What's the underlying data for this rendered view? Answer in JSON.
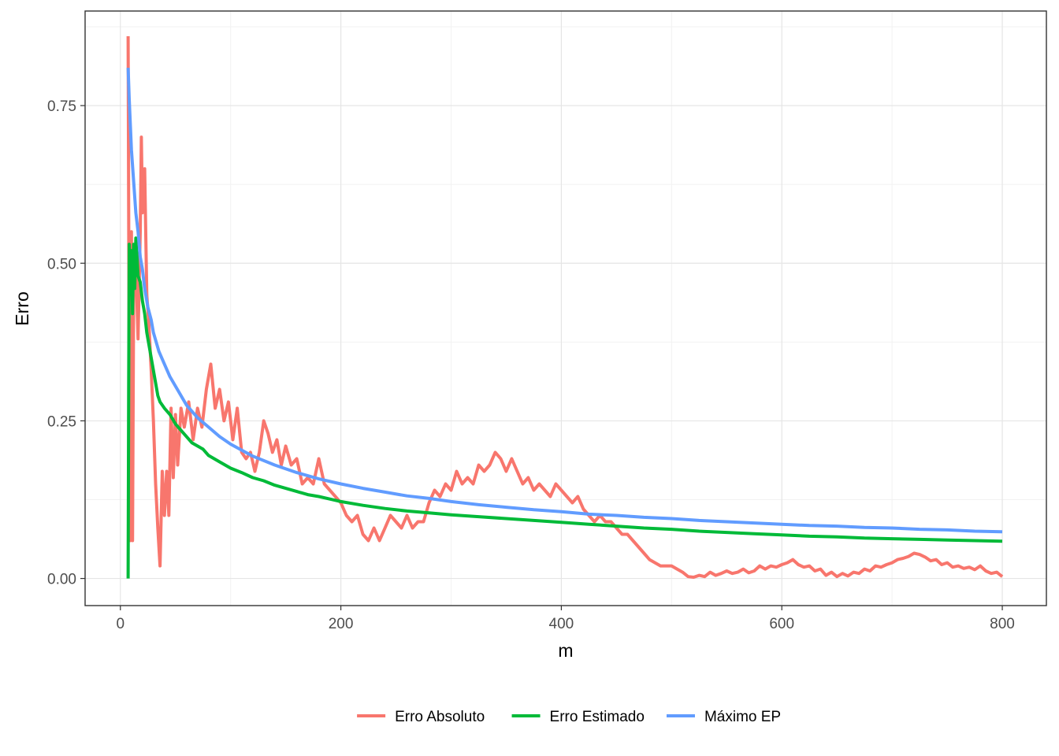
{
  "chart_data": {
    "type": "line",
    "title": "",
    "xlabel": "m",
    "ylabel": "Erro",
    "xlim": [
      -32,
      840
    ],
    "ylim": [
      -0.043,
      0.9
    ],
    "x_ticks": [
      0,
      200,
      400,
      600,
      800
    ],
    "x_tick_labels": [
      "0",
      "200",
      "400",
      "600",
      "800"
    ],
    "y_ticks": [
      0,
      0.25,
      0.5,
      0.75
    ],
    "y_tick_labels": [
      "0.00",
      "0.25",
      "0.50",
      "0.75"
    ],
    "grid": true,
    "legend_position": "bottom",
    "series": [
      {
        "name": "Erro Absoluto",
        "color": "#f8766d",
        "points": [
          [
            7,
            0.86
          ],
          [
            8,
            0.3
          ],
          [
            9,
            0.06
          ],
          [
            10,
            0.55
          ],
          [
            11,
            0.06
          ],
          [
            12,
            0.45
          ],
          [
            14,
            0.5
          ],
          [
            16,
            0.38
          ],
          [
            18,
            0.55
          ],
          [
            19,
            0.7
          ],
          [
            20,
            0.58
          ],
          [
            22,
            0.65
          ],
          [
            24,
            0.45
          ],
          [
            26,
            0.4
          ],
          [
            28,
            0.33
          ],
          [
            30,
            0.25
          ],
          [
            32,
            0.15
          ],
          [
            34,
            0.08
          ],
          [
            36,
            0.02
          ],
          [
            38,
            0.17
          ],
          [
            40,
            0.1
          ],
          [
            42,
            0.17
          ],
          [
            44,
            0.1
          ],
          [
            46,
            0.27
          ],
          [
            48,
            0.16
          ],
          [
            50,
            0.26
          ],
          [
            52,
            0.18
          ],
          [
            55,
            0.27
          ],
          [
            58,
            0.24
          ],
          [
            62,
            0.28
          ],
          [
            66,
            0.22
          ],
          [
            70,
            0.27
          ],
          [
            74,
            0.24
          ],
          [
            78,
            0.3
          ],
          [
            82,
            0.34
          ],
          [
            86,
            0.27
          ],
          [
            90,
            0.3
          ],
          [
            94,
            0.25
          ],
          [
            98,
            0.28
          ],
          [
            102,
            0.22
          ],
          [
            106,
            0.27
          ],
          [
            110,
            0.2
          ],
          [
            114,
            0.19
          ],
          [
            118,
            0.2
          ],
          [
            122,
            0.17
          ],
          [
            126,
            0.2
          ],
          [
            130,
            0.25
          ],
          [
            134,
            0.23
          ],
          [
            138,
            0.2
          ],
          [
            142,
            0.22
          ],
          [
            146,
            0.18
          ],
          [
            150,
            0.21
          ],
          [
            155,
            0.18
          ],
          [
            160,
            0.19
          ],
          [
            165,
            0.15
          ],
          [
            170,
            0.16
          ],
          [
            175,
            0.15
          ],
          [
            180,
            0.19
          ],
          [
            185,
            0.15
          ],
          [
            190,
            0.14
          ],
          [
            195,
            0.13
          ],
          [
            200,
            0.12
          ],
          [
            205,
            0.1
          ],
          [
            210,
            0.09
          ],
          [
            215,
            0.1
          ],
          [
            220,
            0.07
          ],
          [
            225,
            0.06
          ],
          [
            230,
            0.08
          ],
          [
            235,
            0.06
          ],
          [
            240,
            0.08
          ],
          [
            245,
            0.1
          ],
          [
            250,
            0.09
          ],
          [
            255,
            0.08
          ],
          [
            260,
            0.1
          ],
          [
            265,
            0.08
          ],
          [
            270,
            0.09
          ],
          [
            275,
            0.09
          ],
          [
            280,
            0.12
          ],
          [
            285,
            0.14
          ],
          [
            290,
            0.13
          ],
          [
            295,
            0.15
          ],
          [
            300,
            0.14
          ],
          [
            305,
            0.17
          ],
          [
            310,
            0.15
          ],
          [
            315,
            0.16
          ],
          [
            320,
            0.15
          ],
          [
            325,
            0.18
          ],
          [
            330,
            0.17
          ],
          [
            335,
            0.18
          ],
          [
            340,
            0.2
          ],
          [
            345,
            0.19
          ],
          [
            350,
            0.17
          ],
          [
            355,
            0.19
          ],
          [
            360,
            0.17
          ],
          [
            365,
            0.15
          ],
          [
            370,
            0.16
          ],
          [
            375,
            0.14
          ],
          [
            380,
            0.15
          ],
          [
            385,
            0.14
          ],
          [
            390,
            0.13
          ],
          [
            395,
            0.15
          ],
          [
            400,
            0.14
          ],
          [
            405,
            0.13
          ],
          [
            410,
            0.12
          ],
          [
            415,
            0.13
          ],
          [
            420,
            0.11
          ],
          [
            425,
            0.1
          ],
          [
            430,
            0.09
          ],
          [
            435,
            0.1
          ],
          [
            440,
            0.09
          ],
          [
            445,
            0.09
          ],
          [
            450,
            0.08
          ],
          [
            455,
            0.07
          ],
          [
            460,
            0.07
          ],
          [
            465,
            0.06
          ],
          [
            470,
            0.05
          ],
          [
            475,
            0.04
          ],
          [
            480,
            0.03
          ],
          [
            485,
            0.025
          ],
          [
            490,
            0.02
          ],
          [
            495,
            0.02
          ],
          [
            500,
            0.02
          ],
          [
            505,
            0.015
          ],
          [
            510,
            0.01
          ],
          [
            515,
            0.003
          ],
          [
            520,
            0.002
          ],
          [
            525,
            0.005
          ],
          [
            530,
            0.003
          ],
          [
            535,
            0.01
          ],
          [
            540,
            0.005
          ],
          [
            545,
            0.008
          ],
          [
            550,
            0.012
          ],
          [
            555,
            0.008
          ],
          [
            560,
            0.01
          ],
          [
            565,
            0.015
          ],
          [
            570,
            0.009
          ],
          [
            575,
            0.012
          ],
          [
            580,
            0.02
          ],
          [
            585,
            0.015
          ],
          [
            590,
            0.02
          ],
          [
            595,
            0.018
          ],
          [
            600,
            0.022
          ],
          [
            605,
            0.025
          ],
          [
            610,
            0.03
          ],
          [
            615,
            0.022
          ],
          [
            620,
            0.018
          ],
          [
            625,
            0.02
          ],
          [
            630,
            0.012
          ],
          [
            635,
            0.015
          ],
          [
            640,
            0.005
          ],
          [
            645,
            0.01
          ],
          [
            650,
            0.003
          ],
          [
            655,
            0.008
          ],
          [
            660,
            0.004
          ],
          [
            665,
            0.01
          ],
          [
            670,
            0.008
          ],
          [
            675,
            0.015
          ],
          [
            680,
            0.012
          ],
          [
            685,
            0.02
          ],
          [
            690,
            0.018
          ],
          [
            695,
            0.022
          ],
          [
            700,
            0.025
          ],
          [
            705,
            0.03
          ],
          [
            710,
            0.032
          ],
          [
            715,
            0.035
          ],
          [
            720,
            0.04
          ],
          [
            725,
            0.038
          ],
          [
            730,
            0.034
          ],
          [
            735,
            0.028
          ],
          [
            740,
            0.03
          ],
          [
            745,
            0.022
          ],
          [
            750,
            0.025
          ],
          [
            755,
            0.018
          ],
          [
            760,
            0.02
          ],
          [
            765,
            0.016
          ],
          [
            770,
            0.018
          ],
          [
            775,
            0.014
          ],
          [
            780,
            0.02
          ],
          [
            785,
            0.012
          ],
          [
            790,
            0.008
          ],
          [
            795,
            0.01
          ],
          [
            800,
            0.003
          ]
        ]
      },
      {
        "name": "Erro Estimado",
        "color": "#00ba38",
        "points": [
          [
            7,
            0.0
          ],
          [
            7.5,
            0.3
          ],
          [
            8,
            0.53
          ],
          [
            9,
            0.45
          ],
          [
            10,
            0.52
          ],
          [
            11,
            0.42
          ],
          [
            12,
            0.53
          ],
          [
            13,
            0.46
          ],
          [
            14,
            0.54
          ],
          [
            16,
            0.48
          ],
          [
            18,
            0.47
          ],
          [
            20,
            0.44
          ],
          [
            22,
            0.42
          ],
          [
            24,
            0.39
          ],
          [
            26,
            0.37
          ],
          [
            28,
            0.35
          ],
          [
            30,
            0.33
          ],
          [
            32,
            0.31
          ],
          [
            34,
            0.29
          ],
          [
            36,
            0.28
          ],
          [
            38,
            0.275
          ],
          [
            40,
            0.27
          ],
          [
            45,
            0.26
          ],
          [
            50,
            0.245
          ],
          [
            55,
            0.235
          ],
          [
            60,
            0.225
          ],
          [
            65,
            0.215
          ],
          [
            70,
            0.21
          ],
          [
            75,
            0.205
          ],
          [
            80,
            0.195
          ],
          [
            90,
            0.185
          ],
          [
            100,
            0.175
          ],
          [
            110,
            0.168
          ],
          [
            120,
            0.16
          ],
          [
            130,
            0.155
          ],
          [
            140,
            0.148
          ],
          [
            150,
            0.143
          ],
          [
            160,
            0.138
          ],
          [
            170,
            0.133
          ],
          [
            180,
            0.13
          ],
          [
            190,
            0.126
          ],
          [
            200,
            0.122
          ],
          [
            220,
            0.116
          ],
          [
            240,
            0.111
          ],
          [
            260,
            0.107
          ],
          [
            280,
            0.104
          ],
          [
            300,
            0.101
          ],
          [
            325,
            0.098
          ],
          [
            350,
            0.095
          ],
          [
            375,
            0.092
          ],
          [
            400,
            0.089
          ],
          [
            425,
            0.086
          ],
          [
            450,
            0.083
          ],
          [
            475,
            0.08
          ],
          [
            500,
            0.078
          ],
          [
            525,
            0.075
          ],
          [
            550,
            0.073
          ],
          [
            575,
            0.071
          ],
          [
            600,
            0.069
          ],
          [
            625,
            0.067
          ],
          [
            650,
            0.066
          ],
          [
            675,
            0.064
          ],
          [
            700,
            0.063
          ],
          [
            725,
            0.062
          ],
          [
            750,
            0.061
          ],
          [
            775,
            0.06
          ],
          [
            800,
            0.059
          ]
        ]
      },
      {
        "name": "Máximo EP",
        "color": "#619cff",
        "points": [
          [
            7,
            0.81
          ],
          [
            8,
            0.76
          ],
          [
            9,
            0.72
          ],
          [
            10,
            0.68
          ],
          [
            12,
            0.63
          ],
          [
            14,
            0.58
          ],
          [
            16,
            0.55
          ],
          [
            18,
            0.51
          ],
          [
            20,
            0.49
          ],
          [
            22,
            0.46
          ],
          [
            25,
            0.43
          ],
          [
            28,
            0.41
          ],
          [
            30,
            0.39
          ],
          [
            35,
            0.36
          ],
          [
            40,
            0.34
          ],
          [
            45,
            0.32
          ],
          [
            50,
            0.305
          ],
          [
            55,
            0.29
          ],
          [
            60,
            0.275
          ],
          [
            70,
            0.255
          ],
          [
            80,
            0.24
          ],
          [
            90,
            0.225
          ],
          [
            100,
            0.213
          ],
          [
            120,
            0.194
          ],
          [
            140,
            0.18
          ],
          [
            160,
            0.168
          ],
          [
            180,
            0.158
          ],
          [
            200,
            0.15
          ],
          [
            220,
            0.143
          ],
          [
            240,
            0.137
          ],
          [
            260,
            0.131
          ],
          [
            280,
            0.127
          ],
          [
            300,
            0.122
          ],
          [
            325,
            0.117
          ],
          [
            350,
            0.113
          ],
          [
            375,
            0.109
          ],
          [
            400,
            0.106
          ],
          [
            425,
            0.102
          ],
          [
            450,
            0.1
          ],
          [
            475,
            0.097
          ],
          [
            500,
            0.095
          ],
          [
            525,
            0.092
          ],
          [
            550,
            0.09
          ],
          [
            575,
            0.088
          ],
          [
            600,
            0.086
          ],
          [
            625,
            0.084
          ],
          [
            650,
            0.083
          ],
          [
            675,
            0.081
          ],
          [
            700,
            0.08
          ],
          [
            725,
            0.078
          ],
          [
            750,
            0.077
          ],
          [
            775,
            0.075
          ],
          [
            800,
            0.074
          ]
        ]
      }
    ]
  }
}
